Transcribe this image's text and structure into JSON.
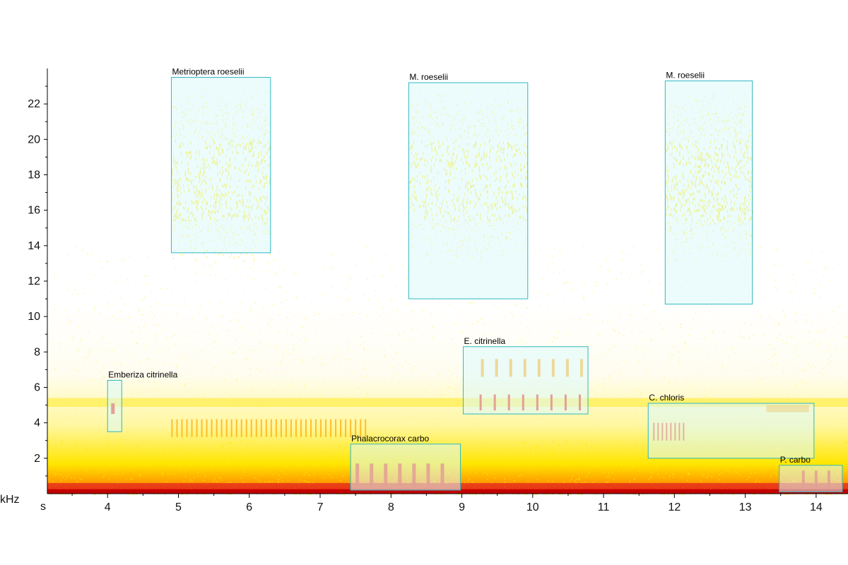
{
  "chart_data": {
    "type": "spectrogram",
    "x": {
      "unit_label": "s",
      "lim": [
        3.15,
        14.45
      ],
      "ticks": [
        4,
        5,
        6,
        7,
        8,
        9,
        10,
        11,
        12,
        13,
        14
      ]
    },
    "y": {
      "unit_label": "kHz",
      "lim": [
        0,
        24.0
      ],
      "ticks": [
        2,
        4,
        6,
        8,
        10,
        12,
        14,
        16,
        18,
        20,
        22
      ]
    },
    "colormap": [
      "#ffffff",
      "#fff58a",
      "#ffe600",
      "#ffa500",
      "#e8341a",
      "#c40000"
    ],
    "annotations": [
      {
        "label": "Metrioptera roeselii",
        "t0": 4.9,
        "t1": 6.3,
        "f0": 13.6,
        "f1": 23.5
      },
      {
        "label": "M. roeselii",
        "t0": 8.25,
        "t1": 9.93,
        "f0": 11.0,
        "f1": 23.2
      },
      {
        "label": "M. roeselii",
        "t0": 11.87,
        "t1": 13.1,
        "f0": 10.7,
        "f1": 23.3
      },
      {
        "label": "Emberiza citrinella",
        "t0": 4.0,
        "t1": 4.2,
        "f0": 3.5,
        "f1": 6.4
      },
      {
        "label": "E. citrinella",
        "t0": 9.02,
        "t1": 10.78,
        "f0": 4.5,
        "f1": 8.3
      },
      {
        "label": "Phalacrocorax carbo",
        "t0": 7.43,
        "t1": 8.98,
        "f0": 0.2,
        "f1": 2.8
      },
      {
        "label": "C. chloris",
        "t0": 11.63,
        "t1": 13.97,
        "f0": 2.0,
        "f1": 5.1
      },
      {
        "label": "P. carbo",
        "t0": 13.48,
        "t1": 14.37,
        "f0": 0.1,
        "f1": 1.6
      }
    ]
  }
}
